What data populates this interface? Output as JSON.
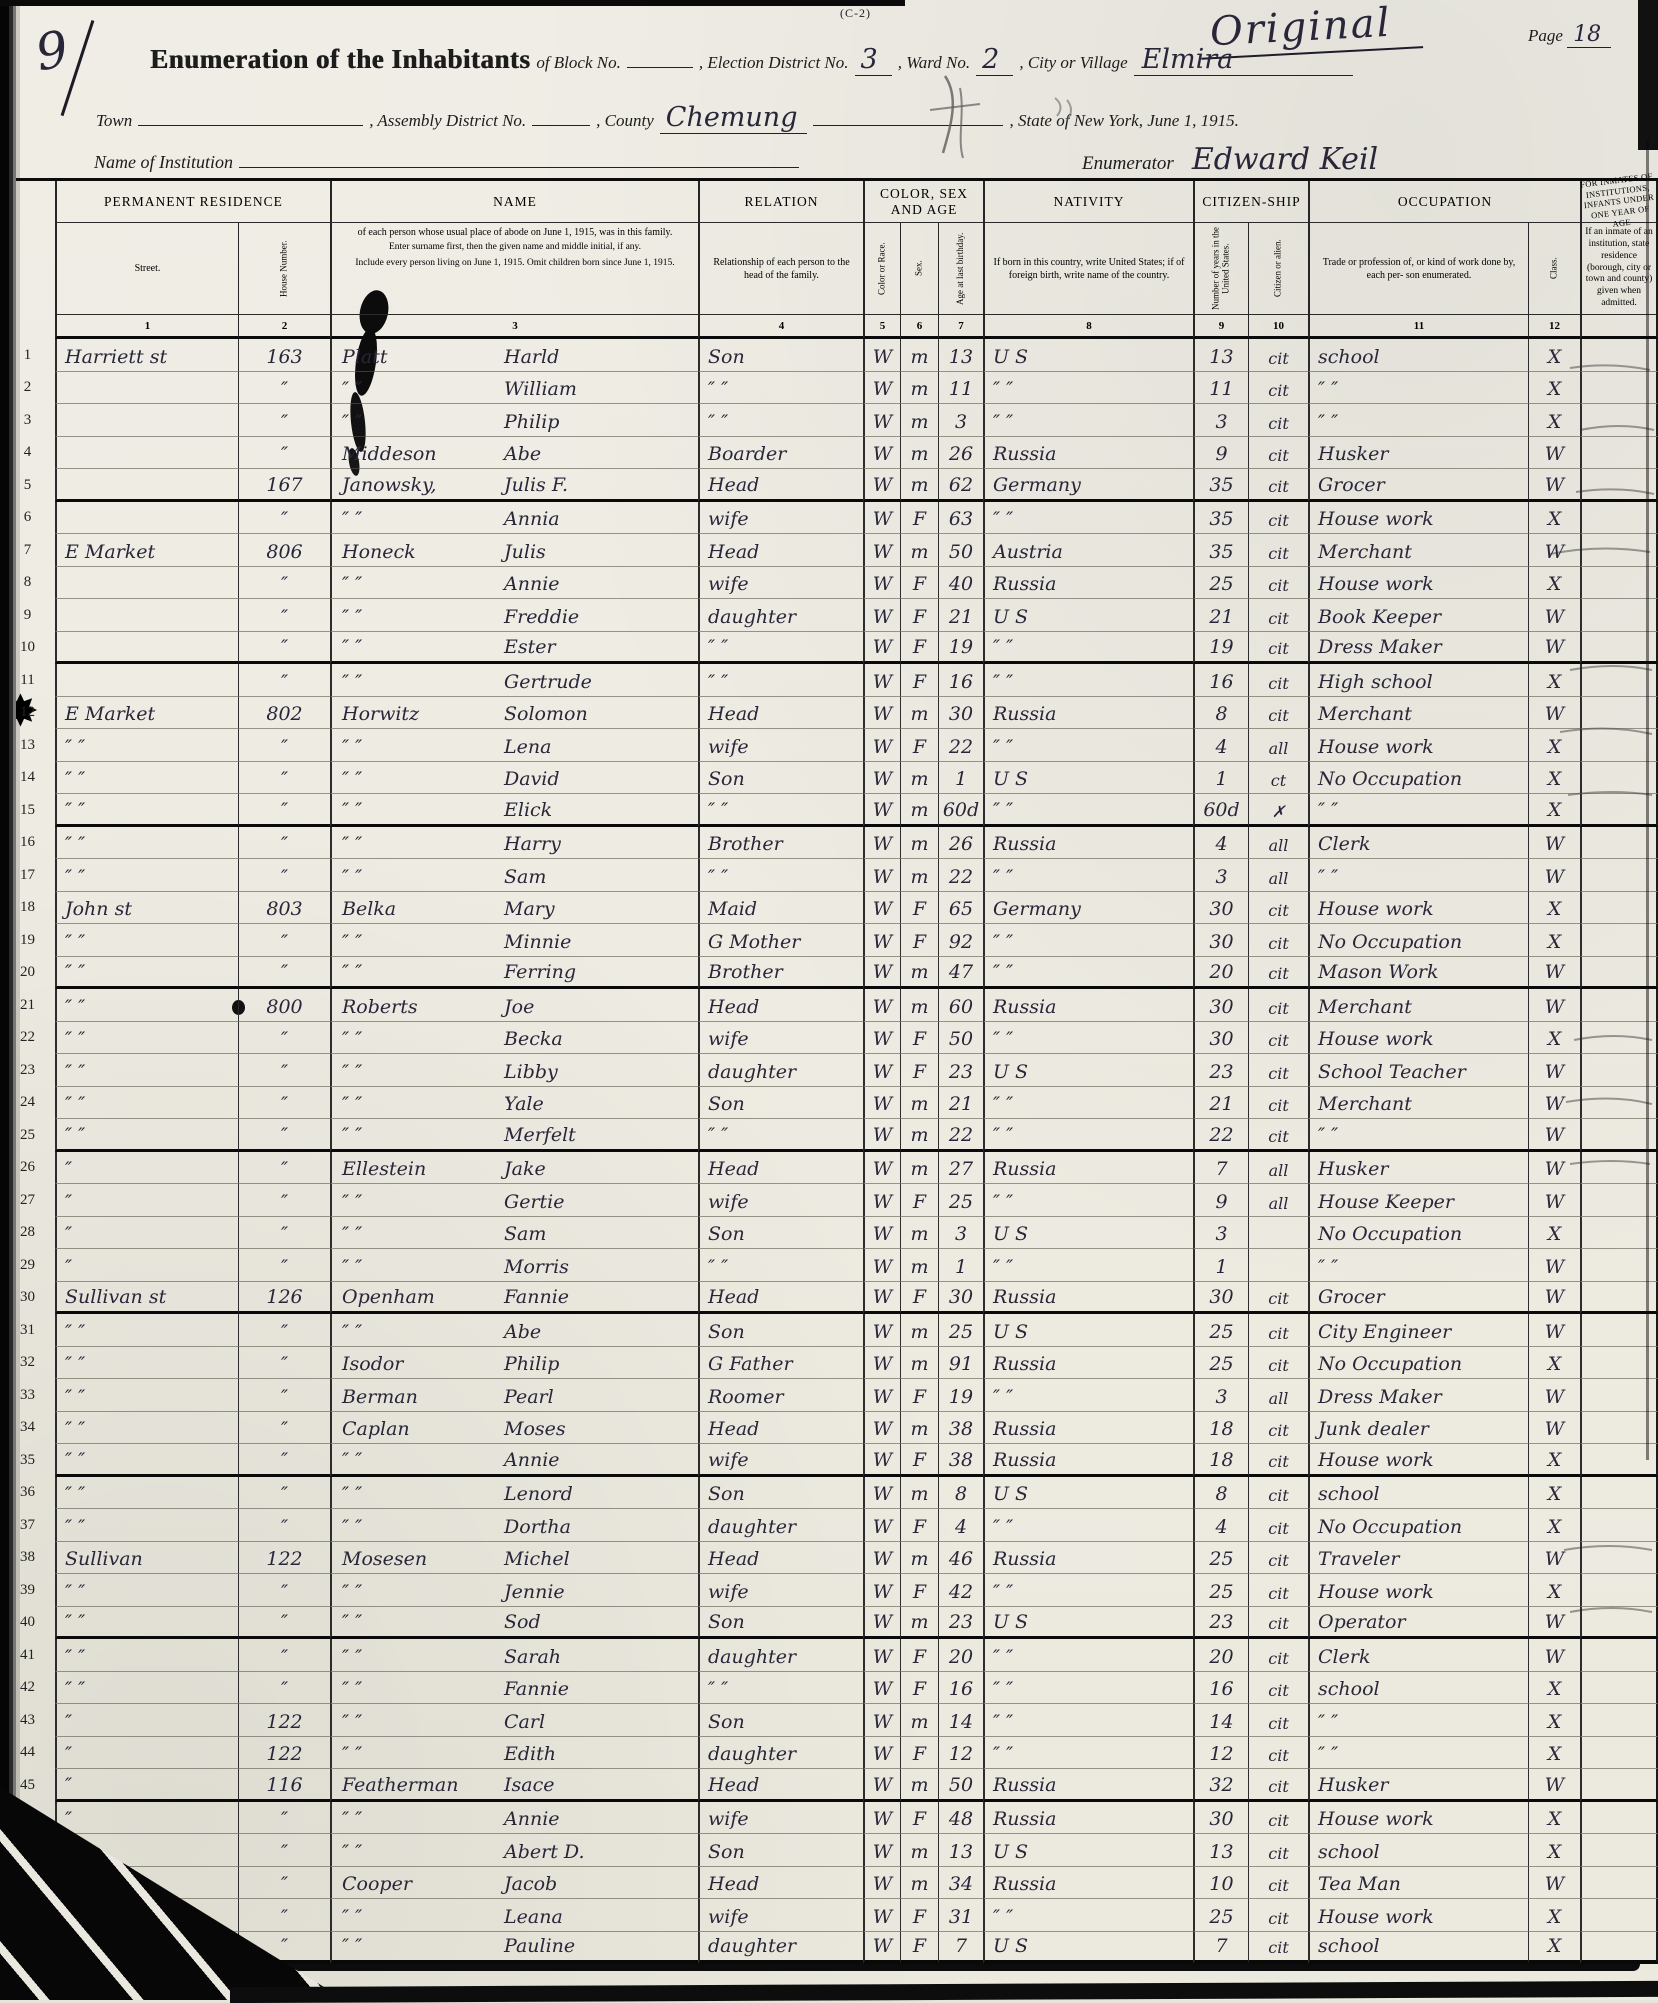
{
  "colors": {
    "paper": "#efede5",
    "ink_print": "#1c1c1c",
    "ink_hand": "#29263a",
    "pencil": "#6b6b6b"
  },
  "header": {
    "form_code": "(C-2)",
    "stamp": "Original",
    "page_word": "Page",
    "page_number": "18",
    "corner_mark": "9",
    "title": "Enumeration of the Inhabitants",
    "of_block": "of Block No.",
    "election_label": ", Election District No.",
    "election_value": "3",
    "ward_label": ", Ward No.",
    "ward_value": "2",
    "city_label": ", City or Village",
    "city_value": "Elmira",
    "town_label": "Town",
    "assembly_label": ", Assembly District No.",
    "county_label": ", County",
    "county_value": "Chemung",
    "state_label": ", State of New York, June 1, 1915.",
    "institution_label": "Name of Institution",
    "enumerator_label": "Enumerator",
    "enumerator_value": "Edward Keil"
  },
  "marginalia": {
    "star_icon": "✸",
    "star_row": 12
  },
  "table": {
    "col_residence": "PERMANENT RESIDENCE",
    "col_street": "Street.",
    "col_house": "House Number.",
    "col_name": "NAME",
    "name_sub1": "of each person whose usual place of abode on June 1, 1915, was in this family.",
    "name_sub2": "Enter surname first, then the given name and middle initial, if any.",
    "name_sub3": "Include every person living on June 1, 1915.  Omit children born since June 1, 1915.",
    "col_relation": "RELATION",
    "relation_sub": "Relationship of each person to the head of the family.",
    "col_colorsexage": "COLOR, SEX AND AGE",
    "col_color": "Color or Race.",
    "col_sex": "Sex.",
    "col_age": "Age at last birthday.",
    "col_nativity": "NATIVITY",
    "nativity_sub": "If born in this country, write United States; if of foreign birth, write name of the country.",
    "col_citizenship": "CITIZEN-SHIP",
    "col_years": "Number of years in the United States.",
    "col_citizen": "Citizen or alien.",
    "col_occupation": "OCCUPATION",
    "occupation_sub": "Trade or profession of, or kind of work done by, each per- son enumerated.",
    "col_class": "Class.",
    "col_inmates": "FOR INMATES OF INSTITUTIONS, INFANTS UNDER ONE YEAR OF AGE",
    "inmates_sub": "If an inmate of an institution, state residence (borough, city or town and county) given when admitted.",
    "numbers": [
      "1",
      "2",
      "3",
      "4",
      "5",
      "6",
      "7",
      "8",
      "9",
      "10",
      "11",
      "12"
    ],
    "rows": [
      {
        "n": "1",
        "street": "Harriett st",
        "house": "163",
        "sur": "Platt",
        "giv": "Harld",
        "rel": "Son",
        "color": "W",
        "sex": "m",
        "age": "13",
        "nat": "U S",
        "yrs": "13",
        "cit": "cit",
        "occ": "school",
        "cls": "X"
      },
      {
        "n": "2",
        "street": "",
        "house": "″",
        "sur": "″  ″",
        "giv": "William",
        "rel": "″  ″",
        "color": "W",
        "sex": "m",
        "age": "11",
        "nat": "″  ″",
        "yrs": "11",
        "cit": "cit",
        "occ": "″  ″",
        "cls": "X"
      },
      {
        "n": "3",
        "street": "",
        "house": "″",
        "sur": "″  ″",
        "giv": "Philip",
        "rel": "″  ″",
        "color": "W",
        "sex": "m",
        "age": "3",
        "nat": "″  ″",
        "yrs": "3",
        "cit": "cit",
        "occ": "″  ″",
        "cls": "X"
      },
      {
        "n": "4",
        "street": "",
        "house": "″",
        "sur": "Middeson",
        "giv": "Abe",
        "rel": "Boarder",
        "color": "W",
        "sex": "m",
        "age": "26",
        "nat": "Russia",
        "yrs": "9",
        "cit": "cit",
        "occ": "Husker",
        "cls": "W"
      },
      {
        "n": "5",
        "street": "",
        "house": "167",
        "sur": "Janowsky,",
        "giv": "Julis F.",
        "rel": "Head",
        "color": "W",
        "sex": "m",
        "age": "62",
        "nat": "Germany",
        "yrs": "35",
        "cit": "cit",
        "occ": "Grocer",
        "cls": "W"
      },
      {
        "n": "6",
        "street": "",
        "house": "″",
        "sur": "″  ″",
        "giv": "Annia",
        "rel": "wife",
        "color": "W",
        "sex": "F",
        "age": "63",
        "nat": "″  ″",
        "yrs": "35",
        "cit": "cit",
        "occ": "House work",
        "cls": "X"
      },
      {
        "n": "7",
        "street": "E Market",
        "house": "806",
        "sur": "Honeck",
        "giv": "Julis",
        "rel": "Head",
        "color": "W",
        "sex": "m",
        "age": "50",
        "nat": "Austria",
        "yrs": "35",
        "cit": "cit",
        "occ": "Merchant",
        "cls": "W"
      },
      {
        "n": "8",
        "street": "",
        "house": "″",
        "sur": "″  ″",
        "giv": "Annie",
        "rel": "wife",
        "color": "W",
        "sex": "F",
        "age": "40",
        "nat": "Russia",
        "yrs": "25",
        "cit": "cit",
        "occ": "House work",
        "cls": "X"
      },
      {
        "n": "9",
        "street": "",
        "house": "″",
        "sur": "″  ″",
        "giv": "Freddie",
        "rel": "daughter",
        "color": "W",
        "sex": "F",
        "age": "21",
        "nat": "U S",
        "yrs": "21",
        "cit": "cit",
        "occ": "Book Keeper",
        "cls": "W"
      },
      {
        "n": "10",
        "street": "",
        "house": "″",
        "sur": "″  ″",
        "giv": "Ester",
        "rel": "″  ″",
        "color": "W",
        "sex": "F",
        "age": "19",
        "nat": "″  ″",
        "yrs": "19",
        "cit": "cit",
        "occ": "Dress Maker",
        "cls": "W"
      },
      {
        "n": "11",
        "street": "",
        "house": "″",
        "sur": "″  ″",
        "giv": "Gertrude",
        "rel": "″  ″",
        "color": "W",
        "sex": "F",
        "age": "16",
        "nat": "″  ″",
        "yrs": "16",
        "cit": "cit",
        "occ": "High school",
        "cls": "X"
      },
      {
        "n": "12",
        "street": "E Market",
        "house": "802",
        "sur": "Horwitz",
        "giv": "Solomon",
        "rel": "Head",
        "color": "W",
        "sex": "m",
        "age": "30",
        "nat": "Russia",
        "yrs": "8",
        "cit": "cit",
        "occ": "Merchant",
        "cls": "W"
      },
      {
        "n": "13",
        "street": "″        ″",
        "house": "″",
        "sur": "″  ″",
        "giv": "Lena",
        "rel": "wife",
        "color": "W",
        "sex": "F",
        "age": "22",
        "nat": "″  ″",
        "yrs": "4",
        "cit": "all",
        "occ": "House work",
        "cls": "X"
      },
      {
        "n": "14",
        "street": "″        ″",
        "house": "″",
        "sur": "″  ″",
        "giv": "David",
        "rel": "Son",
        "color": "W",
        "sex": "m",
        "age": "1",
        "nat": "U S",
        "yrs": "1",
        "cit": "ct",
        "occ": "No Occupation",
        "cls": "X"
      },
      {
        "n": "15",
        "street": "″        ″",
        "house": "″",
        "sur": "″  ″",
        "giv": "Elick",
        "rel": "″  ″",
        "color": "W",
        "sex": "m",
        "age": "60d",
        "nat": "″  ″",
        "yrs": "60d",
        "cit": "✗",
        "occ": "″        ″",
        "cls": "X"
      },
      {
        "n": "16",
        "street": "″        ″",
        "house": "″",
        "sur": "″  ″",
        "giv": "Harry",
        "rel": "Brother",
        "color": "W",
        "sex": "m",
        "age": "26",
        "nat": "Russia",
        "yrs": "4",
        "cit": "all",
        "occ": "Clerk",
        "cls": "W"
      },
      {
        "n": "17",
        "street": "″        ″",
        "house": "″",
        "sur": "″  ″",
        "giv": "Sam",
        "rel": "″  ″",
        "color": "W",
        "sex": "m",
        "age": "22",
        "nat": "″  ″",
        "yrs": "3",
        "cit": "all",
        "occ": "″  ″",
        "cls": "W"
      },
      {
        "n": "18",
        "street": "John st",
        "house": "803",
        "sur": "Belka",
        "giv": "Mary",
        "rel": "Maid",
        "color": "W",
        "sex": "F",
        "age": "65",
        "nat": "Germany",
        "yrs": "30",
        "cit": "cit",
        "occ": "House work",
        "cls": "X"
      },
      {
        "n": "19",
        "street": "″        ″",
        "house": "″",
        "sur": "″  ″",
        "giv": "Minnie",
        "rel": "G Mother",
        "color": "W",
        "sex": "F",
        "age": "92",
        "nat": "″  ″",
        "yrs": "30",
        "cit": "cit",
        "occ": "No Occupation",
        "cls": "X"
      },
      {
        "n": "20",
        "street": "″        ″",
        "house": "″",
        "sur": "″  ″",
        "giv": "Ferring",
        "rel": "Brother",
        "color": "W",
        "sex": "m",
        "age": "47",
        "nat": "″  ″",
        "yrs": "20",
        "cit": "cit",
        "occ": "Mason Work",
        "cls": "W"
      },
      {
        "n": "21",
        "street": "″        ″",
        "house": "800",
        "sur": "Roberts",
        "giv": "Joe",
        "rel": "Head",
        "color": "W",
        "sex": "m",
        "age": "60",
        "nat": "Russia",
        "yrs": "30",
        "cit": "cit",
        "occ": "Merchant",
        "cls": "W"
      },
      {
        "n": "22",
        "street": "″        ″",
        "house": "″",
        "sur": "″  ″",
        "giv": "Becka",
        "rel": "wife",
        "color": "W",
        "sex": "F",
        "age": "50",
        "nat": "″  ″",
        "yrs": "30",
        "cit": "cit",
        "occ": "House work",
        "cls": "X"
      },
      {
        "n": "23",
        "street": "″        ″",
        "house": "″",
        "sur": "″  ″",
        "giv": "Libby",
        "rel": "daughter",
        "color": "W",
        "sex": "F",
        "age": "23",
        "nat": "U S",
        "yrs": "23",
        "cit": "cit",
        "occ": "School Teacher",
        "cls": "W"
      },
      {
        "n": "24",
        "street": "″        ″",
        "house": "″",
        "sur": "″  ″",
        "giv": "Yale",
        "rel": "Son",
        "color": "W",
        "sex": "m",
        "age": "21",
        "nat": "″  ″",
        "yrs": "21",
        "cit": "cit",
        "occ": "Merchant",
        "cls": "W"
      },
      {
        "n": "25",
        "street": "″        ″",
        "house": "″",
        "sur": "″  ″",
        "giv": "Merfelt",
        "rel": "″  ″",
        "color": "W",
        "sex": "m",
        "age": "22",
        "nat": "″  ″",
        "yrs": "22",
        "cit": "cit",
        "occ": "″        ″",
        "cls": "W"
      },
      {
        "n": "26",
        "street": "″",
        "house": "″",
        "sur": "Ellestein",
        "giv": "Jake",
        "rel": "Head",
        "color": "W",
        "sex": "m",
        "age": "27",
        "nat": "Russia",
        "yrs": "7",
        "cit": "all",
        "occ": "Husker",
        "cls": "W"
      },
      {
        "n": "27",
        "street": "″",
        "house": "″",
        "sur": "″  ″",
        "giv": "Gertie",
        "rel": "wife",
        "color": "W",
        "sex": "F",
        "age": "25",
        "nat": "″  ″",
        "yrs": "9",
        "cit": "all",
        "occ": "House Keeper",
        "cls": "W"
      },
      {
        "n": "28",
        "street": "″",
        "house": "″",
        "sur": "″  ″",
        "giv": "Sam",
        "rel": "Son",
        "color": "W",
        "sex": "m",
        "age": "3",
        "nat": "U S",
        "yrs": "3",
        "cit": "",
        "occ": "No Occupation",
        "cls": "X"
      },
      {
        "n": "29",
        "street": "″",
        "house": "″",
        "sur": "″  ″",
        "giv": "Morris",
        "rel": "″  ″",
        "color": "W",
        "sex": "m",
        "age": "1",
        "nat": "″  ″",
        "yrs": "1",
        "cit": "",
        "occ": "″        ″",
        "cls": "W"
      },
      {
        "n": "30",
        "street": "Sullivan st",
        "house": "126",
        "sur": "Openham",
        "giv": "Fannie",
        "rel": "Head",
        "color": "W",
        "sex": "F",
        "age": "30",
        "nat": "Russia",
        "yrs": "30",
        "cit": "cit",
        "occ": "Grocer",
        "cls": "W"
      },
      {
        "n": "31",
        "street": "″        ″",
        "house": "″",
        "sur": "″  ″",
        "giv": "Abe",
        "rel": "Son",
        "color": "W",
        "sex": "m",
        "age": "25",
        "nat": "U S",
        "yrs": "25",
        "cit": "cit",
        "occ": "City Engineer",
        "cls": "W"
      },
      {
        "n": "32",
        "street": "″        ″",
        "house": "″",
        "sur": "Isodor",
        "giv": "Philip",
        "rel": "G Father",
        "color": "W",
        "sex": "m",
        "age": "91",
        "nat": "Russia",
        "yrs": "25",
        "cit": "cit",
        "occ": "No Occupation",
        "cls": "X"
      },
      {
        "n": "33",
        "street": "″        ″",
        "house": "″",
        "sur": "Berman",
        "giv": "Pearl",
        "rel": "Roomer",
        "color": "W",
        "sex": "F",
        "age": "19",
        "nat": "″  ″",
        "yrs": "3",
        "cit": "all",
        "occ": "Dress Maker",
        "cls": "W"
      },
      {
        "n": "34",
        "street": "″        ″",
        "house": "″",
        "sur": "Caplan",
        "giv": "Moses",
        "rel": "Head",
        "color": "W",
        "sex": "m",
        "age": "38",
        "nat": "Russia",
        "yrs": "18",
        "cit": "cit",
        "occ": "Junk dealer",
        "cls": "W"
      },
      {
        "n": "35",
        "street": "″        ″",
        "house": "″",
        "sur": "″  ″",
        "giv": "Annie",
        "rel": "wife",
        "color": "W",
        "sex": "F",
        "age": "38",
        "nat": "Russia",
        "yrs": "18",
        "cit": "cit",
        "occ": "House work",
        "cls": "X"
      },
      {
        "n": "36",
        "street": "″        ″",
        "house": "″",
        "sur": "″  ″",
        "giv": "Lenord",
        "rel": "Son",
        "color": "W",
        "sex": "m",
        "age": "8",
        "nat": "U S",
        "yrs": "8",
        "cit": "cit",
        "occ": "school",
        "cls": "X"
      },
      {
        "n": "37",
        "street": "″        ″",
        "house": "″",
        "sur": "″  ″",
        "giv": "Dortha",
        "rel": "daughter",
        "color": "W",
        "sex": "F",
        "age": "4",
        "nat": "″  ″",
        "yrs": "4",
        "cit": "cit",
        "occ": "No Occupation",
        "cls": "X"
      },
      {
        "n": "38",
        "street": "Sullivan",
        "house": "122",
        "sur": "Mosesen",
        "giv": "Michel",
        "rel": "Head",
        "color": "W",
        "sex": "m",
        "age": "46",
        "nat": "Russia",
        "yrs": "25",
        "cit": "cit",
        "occ": "Traveler",
        "cls": "W"
      },
      {
        "n": "39",
        "street": "″        ″",
        "house": "″",
        "sur": "″  ″",
        "giv": "Jennie",
        "rel": "wife",
        "color": "W",
        "sex": "F",
        "age": "42",
        "nat": "″  ″",
        "yrs": "25",
        "cit": "cit",
        "occ": "House work",
        "cls": "X"
      },
      {
        "n": "40",
        "street": "″        ″",
        "house": "″",
        "sur": "″  ″",
        "giv": "Sod",
        "rel": "Son",
        "color": "W",
        "sex": "m",
        "age": "23",
        "nat": "U S",
        "yrs": "23",
        "cit": "cit",
        "occ": "Operator",
        "cls": "W"
      },
      {
        "n": "41",
        "street": "″        ″",
        "house": "″",
        "sur": "″  ″",
        "giv": "Sarah",
        "rel": "daughter",
        "color": "W",
        "sex": "F",
        "age": "20",
        "nat": "″  ″",
        "yrs": "20",
        "cit": "cit",
        "occ": "Clerk",
        "cls": "W"
      },
      {
        "n": "42",
        "street": "″        ″",
        "house": "″",
        "sur": "″  ″",
        "giv": "Fannie",
        "rel": "″  ″",
        "color": "W",
        "sex": "F",
        "age": "16",
        "nat": "″  ″",
        "yrs": "16",
        "cit": "cit",
        "occ": "school",
        "cls": "X"
      },
      {
        "n": "43",
        "street": "″",
        "house": "122",
        "sur": "″  ″",
        "giv": "Carl",
        "rel": "Son",
        "color": "W",
        "sex": "m",
        "age": "14",
        "nat": "″  ″",
        "yrs": "14",
        "cit": "cit",
        "occ": "″  ″",
        "cls": "X"
      },
      {
        "n": "44",
        "street": "″",
        "house": "122",
        "sur": "″  ″",
        "giv": "Edith",
        "rel": "daughter",
        "color": "W",
        "sex": "F",
        "age": "12",
        "nat": "″  ″",
        "yrs": "12",
        "cit": "cit",
        "occ": "″  ″",
        "cls": "X"
      },
      {
        "n": "45",
        "street": "″",
        "house": "116",
        "sur": "Featherman",
        "giv": "Isace",
        "rel": "Head",
        "color": "W",
        "sex": "m",
        "age": "50",
        "nat": "Russia",
        "yrs": "32",
        "cit": "cit",
        "occ": "Husker",
        "cls": "W"
      },
      {
        "n": "46",
        "street": "″",
        "house": "″",
        "sur": "″  ″",
        "giv": "Annie",
        "rel": "wife",
        "color": "W",
        "sex": "F",
        "age": "48",
        "nat": "Russia",
        "yrs": "30",
        "cit": "cit",
        "occ": "House work",
        "cls": "X"
      },
      {
        "n": "47",
        "street": "″",
        "house": "″",
        "sur": "″  ″",
        "giv": "Abert D.",
        "rel": "Son",
        "color": "W",
        "sex": "m",
        "age": "13",
        "nat": "U S",
        "yrs": "13",
        "cit": "cit",
        "occ": "school",
        "cls": "X"
      },
      {
        "n": "48",
        "street": "″",
        "house": "″",
        "sur": "Cooper",
        "giv": "Jacob",
        "rel": "Head",
        "color": "W",
        "sex": "m",
        "age": "34",
        "nat": "Russia",
        "yrs": "10",
        "cit": "cit",
        "occ": "Tea Man",
        "cls": "W"
      },
      {
        "n": "",
        "street": "″",
        "house": "″",
        "sur": "″  ″",
        "giv": "Leana",
        "rel": "wife",
        "color": "W",
        "sex": "F",
        "age": "31",
        "nat": "″  ″",
        "yrs": "25",
        "cit": "cit",
        "occ": "House work",
        "cls": "X"
      },
      {
        "n": "",
        "street": "″",
        "house": "″",
        "sur": "″  ″",
        "giv": "Pauline",
        "rel": "daughter",
        "color": "W",
        "sex": "F",
        "age": "7",
        "nat": "U S",
        "yrs": "7",
        "cit": "cit",
        "occ": "school",
        "cls": "X"
      }
    ]
  }
}
